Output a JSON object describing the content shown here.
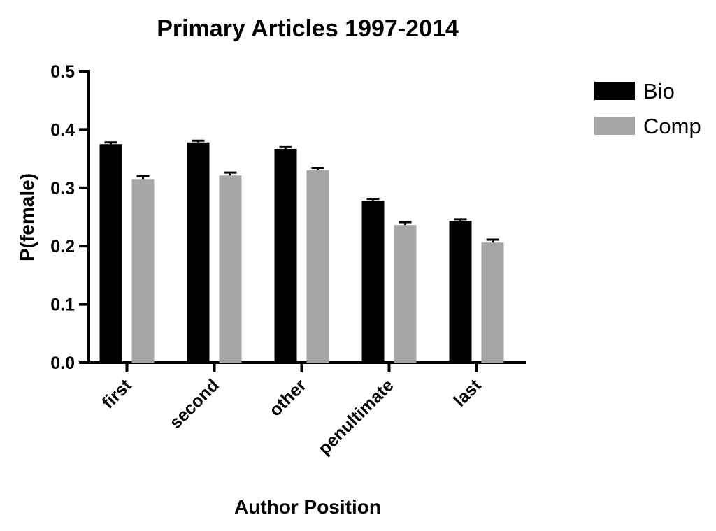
{
  "chart_data": {
    "type": "bar",
    "title": "Primary Articles 1997-2014",
    "xlabel": "Author Position",
    "ylabel": "P(female)",
    "ylim": [
      0,
      0.5
    ],
    "yticks": [
      "0.0",
      "0.1",
      "0.2",
      "0.3",
      "0.4",
      "0.5"
    ],
    "categories": [
      "first",
      "second",
      "other",
      "penultimate",
      "last"
    ],
    "series": [
      {
        "name": "Bio",
        "color": "#000000",
        "values": [
          0.375,
          0.378,
          0.367,
          0.278,
          0.243
        ],
        "errors": [
          0.003,
          0.003,
          0.003,
          0.003,
          0.003
        ]
      },
      {
        "name": "Comp",
        "color": "#a6a6a6",
        "values": [
          0.315,
          0.321,
          0.33,
          0.236,
          0.206
        ],
        "errors": [
          0.005,
          0.005,
          0.004,
          0.005,
          0.005
        ]
      }
    ],
    "legend_position": "top-right",
    "grid": false,
    "error_bars": true
  }
}
